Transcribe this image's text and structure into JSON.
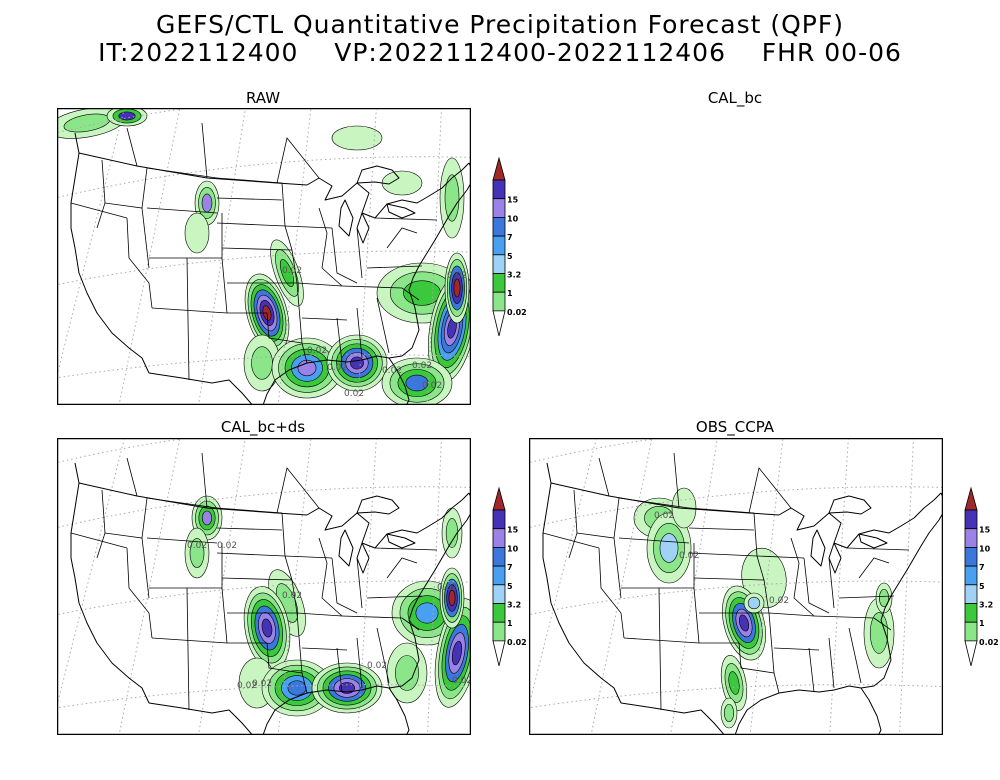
{
  "figure": {
    "title_line1": "GEFS/CTL Quantitative Precipitation Forecast (QPF)",
    "title_line2": "IT:2022112400    VP:2022112400-2022112406    FHR 00-06"
  },
  "panels": [
    {
      "id": "raw",
      "title": "RAW",
      "has_map": true
    },
    {
      "id": "cal_bc",
      "title": "CAL_bc",
      "has_map": false
    },
    {
      "id": "cal_bc_ds",
      "title": "CAL_bc+ds",
      "has_map": true
    },
    {
      "id": "obs_ccpa",
      "title": "OBS_CCPA",
      "has_map": true
    }
  ],
  "colorbar": {
    "levels": [
      "0.02",
      "1",
      "3.2",
      "5",
      "7",
      "10",
      "15"
    ],
    "colors": [
      "#c8f5c0",
      "#8be68a",
      "#3cc83c",
      "#a0d2f5",
      "#4aa0f0",
      "#3c78dc",
      "#9b82e6",
      "#4632b4",
      "#a02828"
    ]
  },
  "contour_labels": {
    "raw": [
      "0.02",
      "0.02",
      "0.02",
      "0.02",
      "0.02",
      "0.02",
      "0.02",
      "0.02"
    ],
    "cal_bc_ds": [
      "0.02",
      "0.02",
      "0.02",
      "0.02",
      "0.02",
      "0.02",
      "0.02",
      "0.02"
    ],
    "obs_ccpa": [
      "0.02",
      "0.02",
      "0.02"
    ]
  },
  "map_style": {
    "land_line": "#000000",
    "grid_line": "#aaaaaa",
    "contour_line": "#000000"
  }
}
